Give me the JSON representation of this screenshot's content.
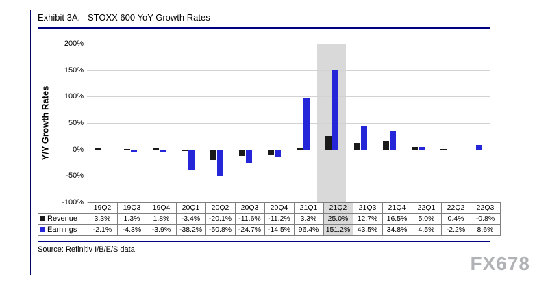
{
  "title": "Exhibit 3A.   STOXX 600 YoY Growth Rates",
  "source": "Source: Refinitiv I/B/E/S data",
  "watermark": "FX678",
  "colors": {
    "rule_navy": "#000080",
    "revenue_bar": "#1a1a1a",
    "earnings_bar": "#2626d9",
    "highlight_band": "#d9d9d9",
    "gridline": "#d2d2d2",
    "table_border": "#7f7f7f",
    "watermark_gray": "#b0b2b5"
  },
  "chart_data": {
    "type": "bar",
    "title": "STOXX 600 YoY Growth Rates",
    "ylabel": "Y/Y Growth Rates",
    "ylim": [
      -100,
      200
    ],
    "ytick_values": [
      200,
      150,
      100,
      50,
      0,
      -50,
      -100
    ],
    "ytick_labels": [
      "200%",
      "150%",
      "100%",
      "50%",
      "0%",
      "-50%",
      "-100%"
    ],
    "grid": true,
    "legend_position": "table-left",
    "value_format": "0.0%",
    "highlight_category": "21Q2",
    "categories": [
      "19Q2",
      "19Q3",
      "19Q4",
      "20Q1",
      "20Q2",
      "20Q3",
      "20Q4",
      "21Q1",
      "21Q2",
      "21Q3",
      "21Q4",
      "22Q1",
      "22Q2",
      "22Q3"
    ],
    "series": [
      {
        "name": "Revenue",
        "color": "#1a1a1a",
        "values": [
          3.3,
          1.3,
          1.8,
          -3.4,
          -20.1,
          -11.6,
          -11.2,
          3.3,
          25.0,
          12.7,
          16.5,
          5.0,
          0.4,
          -0.8
        ]
      },
      {
        "name": "Earnings",
        "color": "#2626d9",
        "values": [
          -2.1,
          -4.3,
          -3.9,
          -38.2,
          -50.8,
          -24.7,
          -14.5,
          96.4,
          151.2,
          43.5,
          34.8,
          4.5,
          -2.2,
          8.6
        ]
      }
    ]
  }
}
